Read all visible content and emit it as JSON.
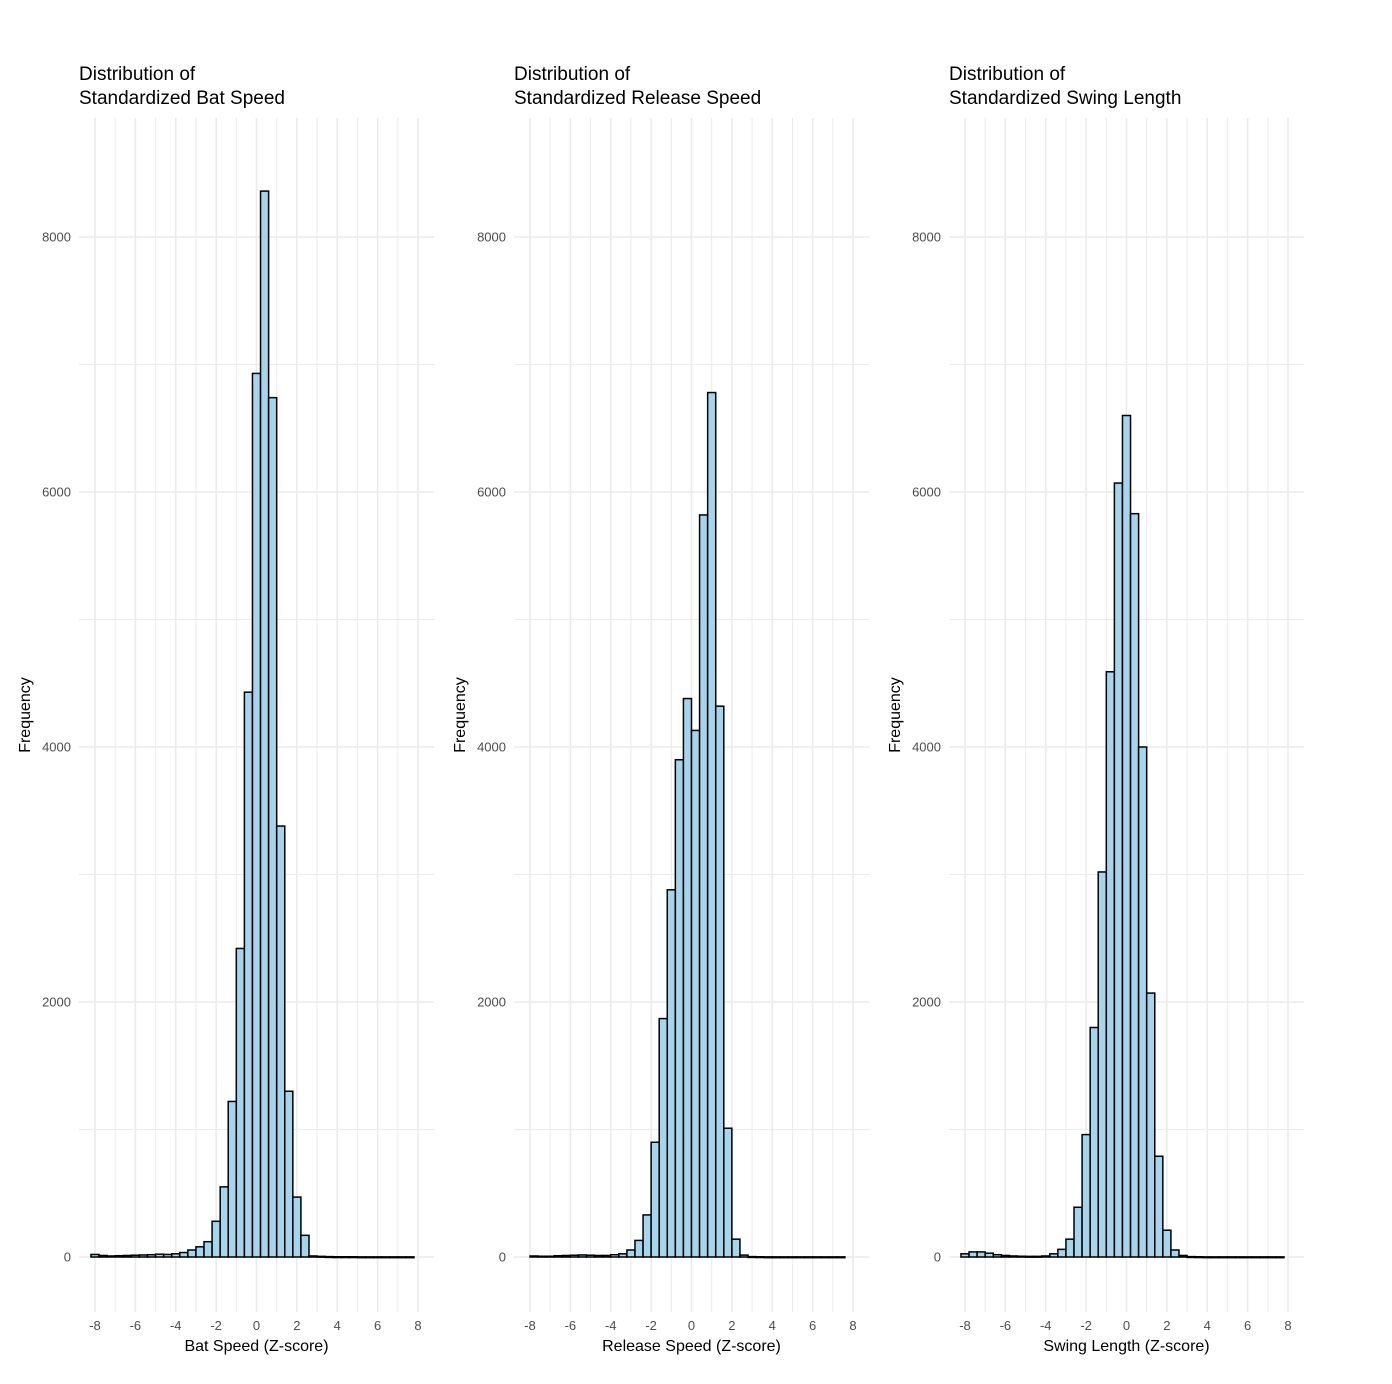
{
  "colors": {
    "bar_fill": "#a6d4ec",
    "bar_stroke": "#000000",
    "grid": "#ebebeb",
    "background": "#ffffff"
  },
  "chart_data": [
    {
      "type": "bar",
      "title_lines": [
        "Distribution of",
        "Standardized Bat Speed"
      ],
      "xlabel": "Bat Speed (Z-score)",
      "ylabel": "Frequency",
      "xlim": [
        -8,
        8
      ],
      "ylim": [
        0,
        8000
      ],
      "x_ticks": [
        "-8",
        "-6",
        "-4",
        "-2",
        "0",
        "2",
        "4",
        "6",
        "8"
      ],
      "y_ticks": [
        "0",
        "2000",
        "4000",
        "6000",
        "8000"
      ],
      "grid": true,
      "bins": [
        {
          "x": -8,
          "v": 20
        },
        {
          "x": -7.6,
          "v": 12
        },
        {
          "x": -7.2,
          "v": 8
        },
        {
          "x": -6.8,
          "v": 10
        },
        {
          "x": -6.4,
          "v": 12
        },
        {
          "x": -6,
          "v": 14
        },
        {
          "x": -5.6,
          "v": 16
        },
        {
          "x": -5.2,
          "v": 18
        },
        {
          "x": -4.8,
          "v": 22
        },
        {
          "x": -4.4,
          "v": 20
        },
        {
          "x": -4,
          "v": 25
        },
        {
          "x": -3.6,
          "v": 35
        },
        {
          "x": -3.2,
          "v": 55
        },
        {
          "x": -2.8,
          "v": 80
        },
        {
          "x": -2.4,
          "v": 120
        },
        {
          "x": -2,
          "v": 280
        },
        {
          "x": -1.6,
          "v": 550
        },
        {
          "x": -1.2,
          "v": 1220
        },
        {
          "x": -0.8,
          "v": 2420
        },
        {
          "x": -0.4,
          "v": 4430
        },
        {
          "x": 0,
          "v": 6930
        },
        {
          "x": 0.4,
          "v": 8360
        },
        {
          "x": 0.8,
          "v": 6740
        },
        {
          "x": 1.2,
          "v": 3380
        },
        {
          "x": 1.6,
          "v": 1300
        },
        {
          "x": 2,
          "v": 470
        },
        {
          "x": 2.4,
          "v": 170
        },
        {
          "x": 2.8,
          "v": 8
        },
        {
          "x": 3.2,
          "v": 5
        },
        {
          "x": 3.6,
          "v": 3
        },
        {
          "x": 4,
          "v": 2
        },
        {
          "x": 4.4,
          "v": 2
        },
        {
          "x": 4.8,
          "v": 2
        },
        {
          "x": 5.2,
          "v": 1
        },
        {
          "x": 5.6,
          "v": 1
        },
        {
          "x": 6,
          "v": 1
        },
        {
          "x": 6.4,
          "v": 1
        },
        {
          "x": 6.8,
          "v": 1
        },
        {
          "x": 7.2,
          "v": 1
        },
        {
          "x": 7.6,
          "v": 1
        }
      ]
    },
    {
      "type": "bar",
      "title_lines": [
        "Distribution of",
        "Standardized Release Speed"
      ],
      "xlabel": "Release Speed (Z-score)",
      "ylabel": "Frequency",
      "xlim": [
        -8,
        8
      ],
      "ylim": [
        0,
        8000
      ],
      "x_ticks": [
        "-8",
        "-6",
        "-4",
        "-2",
        "0",
        "2",
        "4",
        "6",
        "8"
      ],
      "y_ticks": [
        "0",
        "2000",
        "4000",
        "6000",
        "8000"
      ],
      "grid": true,
      "bins": [
        {
          "x": -7.8,
          "v": 8
        },
        {
          "x": -7.4,
          "v": 6
        },
        {
          "x": -7,
          "v": 6
        },
        {
          "x": -6.6,
          "v": 10
        },
        {
          "x": -6.2,
          "v": 12
        },
        {
          "x": -5.8,
          "v": 14
        },
        {
          "x": -5.4,
          "v": 16
        },
        {
          "x": -5,
          "v": 14
        },
        {
          "x": -4.6,
          "v": 12
        },
        {
          "x": -4.2,
          "v": 12
        },
        {
          "x": -3.8,
          "v": 18
        },
        {
          "x": -3.4,
          "v": 25
        },
        {
          "x": -3,
          "v": 55
        },
        {
          "x": -2.6,
          "v": 130
        },
        {
          "x": -2.2,
          "v": 330
        },
        {
          "x": -1.8,
          "v": 900
        },
        {
          "x": -1.4,
          "v": 1870
        },
        {
          "x": -1,
          "v": 2880
        },
        {
          "x": -0.6,
          "v": 3900
        },
        {
          "x": -0.2,
          "v": 4380
        },
        {
          "x": 0.2,
          "v": 4130
        },
        {
          "x": 0.6,
          "v": 5820
        },
        {
          "x": 1,
          "v": 6780
        },
        {
          "x": 1.4,
          "v": 4320
        },
        {
          "x": 1.8,
          "v": 1010
        },
        {
          "x": 2.2,
          "v": 140
        },
        {
          "x": 2.6,
          "v": 15
        },
        {
          "x": 3,
          "v": 3
        },
        {
          "x": 3.4,
          "v": 2
        },
        {
          "x": 3.8,
          "v": 1
        },
        {
          "x": 4.2,
          "v": 1
        },
        {
          "x": 4.6,
          "v": 1
        },
        {
          "x": 5,
          "v": 1
        },
        {
          "x": 5.4,
          "v": 1
        },
        {
          "x": 5.8,
          "v": 1
        },
        {
          "x": 6.2,
          "v": 1
        },
        {
          "x": 6.6,
          "v": 1
        },
        {
          "x": 7,
          "v": 1
        },
        {
          "x": 7.4,
          "v": 1
        }
      ]
    },
    {
      "type": "bar",
      "title_lines": [
        "Distribution of",
        "Standardized Swing Length"
      ],
      "xlabel": "Swing Length (Z-score)",
      "ylabel": "Frequency",
      "xlim": [
        -8,
        8
      ],
      "ylim": [
        0,
        8000
      ],
      "x_ticks": [
        "-8",
        "-6",
        "-4",
        "-2",
        "0",
        "2",
        "4",
        "6",
        "8"
      ],
      "y_ticks": [
        "0",
        "2000",
        "4000",
        "6000",
        "8000"
      ],
      "grid": true,
      "bins": [
        {
          "x": -8,
          "v": 25
        },
        {
          "x": -7.6,
          "v": 40
        },
        {
          "x": -7.2,
          "v": 40
        },
        {
          "x": -6.8,
          "v": 30
        },
        {
          "x": -6.4,
          "v": 18
        },
        {
          "x": -6,
          "v": 12
        },
        {
          "x": -5.6,
          "v": 8
        },
        {
          "x": -5.2,
          "v": 6
        },
        {
          "x": -4.8,
          "v": 5
        },
        {
          "x": -4.4,
          "v": 5
        },
        {
          "x": -4,
          "v": 8
        },
        {
          "x": -3.6,
          "v": 25
        },
        {
          "x": -3.2,
          "v": 60
        },
        {
          "x": -2.8,
          "v": 140
        },
        {
          "x": -2.4,
          "v": 390
        },
        {
          "x": -2,
          "v": 960
        },
        {
          "x": -1.6,
          "v": 1800
        },
        {
          "x": -1.2,
          "v": 3020
        },
        {
          "x": -0.8,
          "v": 4590
        },
        {
          "x": -0.4,
          "v": 6070
        },
        {
          "x": 0,
          "v": 6600
        },
        {
          "x": 0.4,
          "v": 5830
        },
        {
          "x": 0.8,
          "v": 4000
        },
        {
          "x": 1.2,
          "v": 2070
        },
        {
          "x": 1.6,
          "v": 790
        },
        {
          "x": 2,
          "v": 210
        },
        {
          "x": 2.4,
          "v": 55
        },
        {
          "x": 2.8,
          "v": 12
        },
        {
          "x": 3.2,
          "v": 3
        },
        {
          "x": 3.6,
          "v": 2
        },
        {
          "x": 4,
          "v": 1
        },
        {
          "x": 4.4,
          "v": 1
        },
        {
          "x": 4.8,
          "v": 1
        },
        {
          "x": 5.2,
          "v": 1
        },
        {
          "x": 5.6,
          "v": 1
        },
        {
          "x": 6,
          "v": 1
        },
        {
          "x": 6.4,
          "v": 1
        },
        {
          "x": 6.8,
          "v": 1
        },
        {
          "x": 7.2,
          "v": 1
        },
        {
          "x": 7.6,
          "v": 1
        }
      ]
    }
  ]
}
